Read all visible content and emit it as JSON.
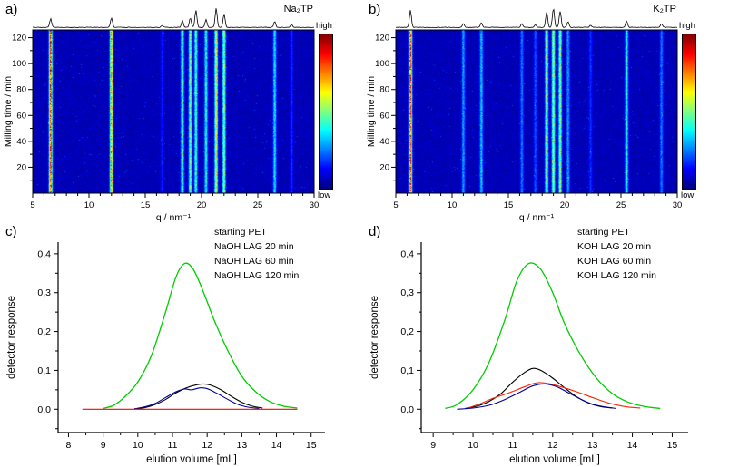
{
  "chart_data": [
    {
      "id": "a",
      "type": "heatmap",
      "panel_label": "a)",
      "compound_label": "Na₂TP",
      "xlabel": "q / nm⁻¹",
      "ylabel": "Milling time / min",
      "xlim": [
        5,
        30
      ],
      "xticks": [
        5,
        10,
        15,
        20,
        25,
        30
      ],
      "ylim": [
        0,
        126
      ],
      "yticks": [
        20,
        40,
        60,
        80,
        100,
        120
      ],
      "colorbar": {
        "high": "high",
        "low": "low"
      },
      "colormap": "jet",
      "peaks": [
        {
          "q": 6.6,
          "map": 1.0,
          "trace": 0.45
        },
        {
          "q": 12.0,
          "map": 0.85,
          "trace": 0.5
        },
        {
          "q": 16.5,
          "map": 0.12,
          "trace": 0.1
        },
        {
          "q": 18.3,
          "map": 0.5,
          "trace": 0.35
        },
        {
          "q": 19.0,
          "map": 0.55,
          "trace": 0.5
        },
        {
          "q": 19.5,
          "map": 0.5,
          "trace": 0.9
        },
        {
          "q": 20.4,
          "map": 0.45,
          "trace": 0.4
        },
        {
          "q": 21.3,
          "map": 0.7,
          "trace": 1.0
        },
        {
          "q": 22.0,
          "map": 0.6,
          "trace": 0.7
        },
        {
          "q": 26.5,
          "map": 0.4,
          "trace": 0.3
        },
        {
          "q": 28.0,
          "map": 0.15,
          "trace": 0.15
        }
      ]
    },
    {
      "id": "b",
      "type": "heatmap",
      "panel_label": "b)",
      "compound_label": "K₂TP",
      "xlabel": "q / nm⁻¹",
      "ylabel": "Milling time / min",
      "xlim": [
        5,
        30
      ],
      "xticks": [
        5,
        10,
        15,
        20,
        25,
        30
      ],
      "ylim": [
        0,
        126
      ],
      "yticks": [
        20,
        40,
        60,
        80,
        100,
        120
      ],
      "colorbar": {
        "high": "high",
        "low": "low"
      },
      "colormap": "jet",
      "peaks": [
        {
          "q": 6.3,
          "map": 1.0,
          "trace": 0.9
        },
        {
          "q": 11.0,
          "map": 0.3,
          "trace": 0.2
        },
        {
          "q": 12.6,
          "map": 0.35,
          "trace": 0.25
        },
        {
          "q": 16.2,
          "map": 0.25,
          "trace": 0.2
        },
        {
          "q": 17.4,
          "map": 0.2,
          "trace": 0.15
        },
        {
          "q": 18.4,
          "map": 0.6,
          "trace": 0.8
        },
        {
          "q": 19.0,
          "map": 0.65,
          "trace": 1.0
        },
        {
          "q": 19.6,
          "map": 0.6,
          "trace": 0.85
        },
        {
          "q": 20.3,
          "map": 0.3,
          "trace": 0.3
        },
        {
          "q": 22.3,
          "map": 0.15,
          "trace": 0.1
        },
        {
          "q": 25.5,
          "map": 0.45,
          "trace": 0.35
        },
        {
          "q": 28.6,
          "map": 0.25,
          "trace": 0.2
        }
      ]
    },
    {
      "id": "c",
      "type": "line",
      "panel_label": "c)",
      "xlabel": "elution volume [mL]",
      "ylabel": "detector response",
      "xlim": [
        7.7,
        15.4
      ],
      "xticks": [
        8,
        9,
        10,
        11,
        12,
        13,
        14,
        15
      ],
      "ylim": [
        -0.06,
        0.43
      ],
      "yticks": [
        0.0,
        0.1,
        0.2,
        0.3,
        0.4
      ],
      "ytick_labels": [
        "0,0",
        "0,1",
        "0,2",
        "0,3",
        "0,4"
      ],
      "legend_position": "top-right-inside",
      "series": [
        {
          "name": "starting PET",
          "color": "#00cc00",
          "points": [
            [
              9.0,
              0.002
            ],
            [
              9.3,
              0.01
            ],
            [
              9.6,
              0.03
            ],
            [
              10.0,
              0.07
            ],
            [
              10.4,
              0.14
            ],
            [
              10.8,
              0.25
            ],
            [
              11.1,
              0.34
            ],
            [
              11.35,
              0.375
            ],
            [
              11.6,
              0.36
            ],
            [
              11.9,
              0.3
            ],
            [
              12.2,
              0.23
            ],
            [
              12.6,
              0.15
            ],
            [
              13.0,
              0.085
            ],
            [
              13.4,
              0.045
            ],
            [
              13.8,
              0.02
            ],
            [
              14.2,
              0.008
            ],
            [
              14.6,
              0.003
            ]
          ]
        },
        {
          "name": "NaOH LAG 20 min",
          "color": "#000000",
          "points": [
            [
              9.9,
              0.001
            ],
            [
              10.2,
              0.004
            ],
            [
              10.5,
              0.012
            ],
            [
              10.8,
              0.025
            ],
            [
              11.1,
              0.042
            ],
            [
              11.4,
              0.055
            ],
            [
              11.7,
              0.063
            ],
            [
              11.9,
              0.065
            ],
            [
              12.1,
              0.062
            ],
            [
              12.4,
              0.05
            ],
            [
              12.7,
              0.033
            ],
            [
              13.0,
              0.018
            ],
            [
              13.3,
              0.008
            ],
            [
              13.6,
              0.003
            ]
          ]
        },
        {
          "name": "NaOH LAG 60 min",
          "color": "#000099",
          "points": [
            [
              9.9,
              0.001
            ],
            [
              10.2,
              0.006
            ],
            [
              10.5,
              0.015
            ],
            [
              10.8,
              0.03
            ],
            [
              11.1,
              0.045
            ],
            [
              11.35,
              0.052
            ],
            [
              11.55,
              0.05
            ],
            [
              11.8,
              0.055
            ],
            [
              12.0,
              0.053
            ],
            [
              12.3,
              0.04
            ],
            [
              12.6,
              0.025
            ],
            [
              12.9,
              0.012
            ],
            [
              13.2,
              0.005
            ],
            [
              13.5,
              0.002
            ]
          ]
        },
        {
          "name": "NaOH LAG 120 min",
          "color": "#ff0000",
          "points": [
            [
              8.4,
              0.0
            ],
            [
              10.0,
              0.0
            ],
            [
              12.0,
              0.0
            ],
            [
              14.6,
              0.0
            ]
          ]
        }
      ]
    },
    {
      "id": "d",
      "type": "line",
      "panel_label": "d)",
      "xlabel": "elution volume [mL]",
      "ylabel": "detector response",
      "xlim": [
        8.7,
        15.4
      ],
      "xticks": [
        9,
        10,
        11,
        12,
        13,
        14,
        15
      ],
      "ylim": [
        -0.06,
        0.43
      ],
      "yticks": [
        0.0,
        0.1,
        0.2,
        0.3,
        0.4
      ],
      "ytick_labels": [
        "0,0",
        "0,1",
        "0,2",
        "0,3",
        "0,4"
      ],
      "legend_position": "top-right-inside",
      "series": [
        {
          "name": "starting PET",
          "color": "#00cc00",
          "points": [
            [
              9.3,
              0.002
            ],
            [
              9.6,
              0.012
            ],
            [
              10.0,
              0.05
            ],
            [
              10.4,
              0.12
            ],
            [
              10.8,
              0.23
            ],
            [
              11.1,
              0.33
            ],
            [
              11.4,
              0.375
            ],
            [
              11.7,
              0.36
            ],
            [
              12.0,
              0.3
            ],
            [
              12.3,
              0.22
            ],
            [
              12.7,
              0.14
            ],
            [
              13.1,
              0.08
            ],
            [
              13.5,
              0.04
            ],
            [
              13.9,
              0.018
            ],
            [
              14.3,
              0.007
            ],
            [
              14.7,
              0.002
            ]
          ]
        },
        {
          "name": "KOH LAG 20 min",
          "color": "#000000",
          "points": [
            [
              9.8,
              0.002
            ],
            [
              10.1,
              0.008
            ],
            [
              10.4,
              0.02
            ],
            [
              10.7,
              0.04
            ],
            [
              11.0,
              0.07
            ],
            [
              11.3,
              0.095
            ],
            [
              11.5,
              0.105
            ],
            [
              11.7,
              0.1
            ],
            [
              12.0,
              0.08
            ],
            [
              12.3,
              0.055
            ],
            [
              12.6,
              0.032
            ],
            [
              12.9,
              0.016
            ],
            [
              13.2,
              0.007
            ],
            [
              13.5,
              0.003
            ]
          ]
        },
        {
          "name": "KOH LAG 60 min",
          "color": "#000099",
          "points": [
            [
              9.6,
              0.0
            ],
            [
              10.0,
              0.003
            ],
            [
              10.4,
              0.01
            ],
            [
              10.8,
              0.025
            ],
            [
              11.2,
              0.045
            ],
            [
              11.5,
              0.06
            ],
            [
              11.8,
              0.065
            ],
            [
              12.1,
              0.058
            ],
            [
              12.4,
              0.042
            ],
            [
              12.7,
              0.026
            ],
            [
              13.0,
              0.013
            ],
            [
              13.3,
              0.006
            ],
            [
              13.6,
              0.002
            ]
          ]
        },
        {
          "name": "KOH LAG 120 min",
          "color": "#ff2200",
          "points": [
            [
              9.9,
              0.004
            ],
            [
              10.2,
              0.015
            ],
            [
              10.5,
              0.028
            ],
            [
              10.9,
              0.042
            ],
            [
              11.3,
              0.058
            ],
            [
              11.6,
              0.068
            ],
            [
              11.9,
              0.066
            ],
            [
              12.2,
              0.058
            ],
            [
              12.6,
              0.045
            ],
            [
              13.0,
              0.03
            ],
            [
              13.4,
              0.016
            ],
            [
              13.8,
              0.007
            ],
            [
              14.2,
              0.003
            ]
          ]
        }
      ]
    }
  ]
}
